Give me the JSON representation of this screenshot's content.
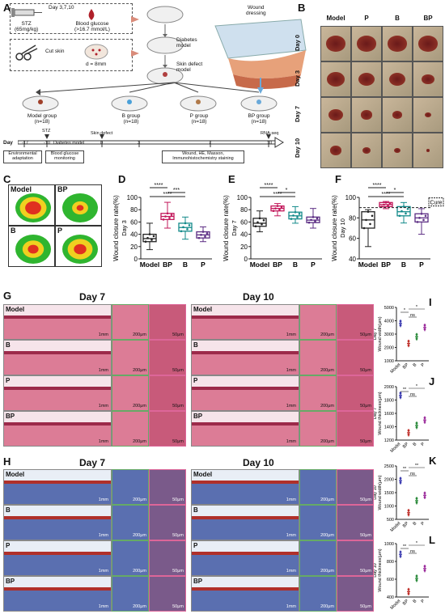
{
  "panels": {
    "A": "A",
    "B": "B",
    "C": "C",
    "D": "D",
    "E": "E",
    "F": "F",
    "G": "G",
    "H": "H",
    "I": "I",
    "J": "J",
    "K": "K",
    "L": "L"
  },
  "panelA": {
    "stz_dose": "STZ",
    "stz_dose2": "(65mg/kg)",
    "days": "Day 3,7,10",
    "glucose": "Blood glucose",
    "glucose2": "(>16.7 mmol/L)",
    "cut_skin": "Cut skin",
    "diameter": "d = 8mm",
    "diabetes_model": "Diabetes",
    "diabetes_model2": "model",
    "skin_defect_model": "Skin defect",
    "skin_defect_model2": "model",
    "wound_dressing": "Wound",
    "wound_dressing2": "dressing",
    "groups": [
      {
        "name": "Model group",
        "n": "(n=18)"
      },
      {
        "name": "B group",
        "n": "(n=18)"
      },
      {
        "name": "P group",
        "n": "(n=18)"
      },
      {
        "name": "BP group",
        "n": "(n=18)"
      }
    ],
    "timeline_day": "Day",
    "ticks": [
      "-17",
      "-10",
      "0",
      "3",
      "7",
      "10"
    ],
    "stz_tick": "STZ",
    "diabetes_tl": "Diabetes model",
    "skin_defect_tl": "Skin defect",
    "rnaseq": "RNA-seq",
    "env": "Environmental",
    "env2": "adaptation",
    "monitor": "Blood glucose",
    "monitor2": "monitoring",
    "staining": "Wound, HE, Masson,",
    "staining2": "Immunohistochemistry staining"
  },
  "panelB": {
    "cols": [
      "Model",
      "P",
      "B",
      "BP"
    ],
    "rows": [
      "Day 0",
      "Day 3",
      "Day 7",
      "Day 10"
    ]
  },
  "panelC": {
    "labels": [
      "Model",
      "BP",
      "B",
      "P"
    ]
  },
  "boxplots": [
    {
      "id": "D",
      "ylabel": "Wound closure rate(%)",
      "daylabel": "Day 3",
      "yticks": [
        "0",
        "20",
        "40",
        "60",
        "80",
        "100"
      ],
      "ymin": 0,
      "ymax": 100,
      "groups": [
        "Model",
        "BP",
        "B",
        "P"
      ],
      "colors": [
        "#222222",
        "#c2185b",
        "#138a8a",
        "#5b2c83"
      ],
      "boxes": [
        {
          "q1": 28,
          "med": 33,
          "q3": 40,
          "lo": 15,
          "hi": 58
        },
        {
          "q1": 64,
          "med": 69,
          "q3": 74,
          "lo": 50,
          "hi": 92
        },
        {
          "q1": 45,
          "med": 51,
          "q3": 58,
          "lo": 32,
          "hi": 68
        },
        {
          "q1": 34,
          "med": 39,
          "q3": 44,
          "lo": 28,
          "hi": 52
        }
      ],
      "sig": [
        "****",
        "***",
        "****"
      ]
    },
    {
      "id": "E",
      "ylabel": "Wound closure rate(%)",
      "daylabel": "Day 7",
      "yticks": [
        "0",
        "20",
        "40",
        "60",
        "80",
        "100"
      ],
      "ymin": 0,
      "ymax": 100,
      "groups": [
        "Model",
        "BP",
        "B",
        "P"
      ],
      "colors": [
        "#222222",
        "#c2185b",
        "#138a8a",
        "#5b2c83"
      ],
      "boxes": [
        {
          "q1": 53,
          "med": 58,
          "q3": 66,
          "lo": 44,
          "hi": 78
        },
        {
          "q1": 78,
          "med": 82,
          "q3": 86,
          "lo": 70,
          "hi": 90
        },
        {
          "q1": 65,
          "med": 70,
          "q3": 76,
          "lo": 58,
          "hi": 85
        },
        {
          "q1": 59,
          "med": 63,
          "q3": 68,
          "lo": 50,
          "hi": 82
        }
      ],
      "sig": [
        "****",
        "*",
        "****"
      ]
    },
    {
      "id": "F",
      "ylabel": "Wound closure rate(%)",
      "daylabel": "Day 10",
      "yticks": [
        "40",
        "60",
        "80",
        "100"
      ],
      "ymin": 40,
      "ymax": 100,
      "groups": [
        "Model",
        "BP",
        "B",
        "P"
      ],
      "colors": [
        "#222222",
        "#c2185b",
        "#138a8a",
        "#5b2c83"
      ],
      "boxes": [
        {
          "q1": 70,
          "med": 78,
          "q3": 86,
          "lo": 52,
          "hi": 88
        },
        {
          "q1": 91,
          "med": 93,
          "q3": 95,
          "lo": 89,
          "hi": 96
        },
        {
          "q1": 82,
          "med": 86,
          "q3": 91,
          "lo": 75,
          "hi": 95
        },
        {
          "q1": 76,
          "med": 80,
          "q3": 84,
          "lo": 64,
          "hi": 89
        }
      ],
      "sig": [
        "****",
        "*",
        "****"
      ],
      "cure": "Cure"
    }
  ],
  "panelG": {
    "day7": "Day 7",
    "day10": "Day 10",
    "rows": [
      "Model",
      "B",
      "P",
      "BP"
    ],
    "scale": [
      "1mm",
      "200μm",
      "50μm"
    ]
  },
  "panelH": {
    "day7": "Day 7",
    "day10": "Day 10",
    "rows": [
      "Model",
      "B",
      "P",
      "BP"
    ],
    "scale": [
      "1mm",
      "200μm",
      "50μm"
    ]
  },
  "dotplots": [
    {
      "id": "I",
      "day": "Day 7",
      "ylabel": "Wound width(μm)",
      "yticks": [
        "1000",
        "2000",
        "3000",
        "4000",
        "5000"
      ],
      "ymin": 1000,
      "ymax": 5000,
      "groups": [
        "Model",
        "BP",
        "B",
        "P"
      ],
      "colors": [
        "#3a3ab0",
        "#c0302a",
        "#2a8a3a",
        "#9a2a9a"
      ],
      "means": [
        3800,
        2300,
        2800,
        3500
      ],
      "sig": [
        "*",
        "ns",
        "*"
      ]
    },
    {
      "id": "J",
      "day": "Day 7",
      "ylabel": "Wound thickness(μm)",
      "yticks": [
        "1200",
        "1400",
        "1600",
        "1800",
        "2000"
      ],
      "ymin": 1200,
      "ymax": 2000,
      "groups": [
        "Model",
        "BP",
        "B",
        "P"
      ],
      "colors": [
        "#3a3ab0",
        "#c0302a",
        "#2a8a3a",
        "#9a2a9a"
      ],
      "means": [
        1870,
        1310,
        1420,
        1500
      ],
      "sig": [
        "**",
        "ns",
        "*"
      ]
    },
    {
      "id": "K",
      "day": "Day 10",
      "ylabel": "Wound width(μm)",
      "yticks": [
        "500",
        "1000",
        "1500",
        "2000",
        "2500"
      ],
      "ymin": 500,
      "ymax": 2500,
      "groups": [
        "Model",
        "BP",
        "B",
        "P"
      ],
      "colors": [
        "#3a3ab0",
        "#c0302a",
        "#2a8a3a",
        "#9a2a9a"
      ],
      "means": [
        1950,
        750,
        1200,
        1400
      ],
      "sig": [
        "**",
        "ns",
        "**"
      ]
    },
    {
      "id": "L",
      "day": "Day 10",
      "ylabel": "Wound thickness(μm)",
      "yticks": [
        "400",
        "600",
        "800",
        "1000"
      ],
      "ymin": 400,
      "ymax": 1000,
      "groups": [
        "Model",
        "BP",
        "B",
        "P"
      ],
      "colors": [
        "#3a3ab0",
        "#c0302a",
        "#2a8a3a",
        "#9a2a9a"
      ],
      "means": [
        880,
        460,
        610,
        720
      ],
      "sig": [
        "**",
        "ns",
        "*"
      ]
    }
  ]
}
